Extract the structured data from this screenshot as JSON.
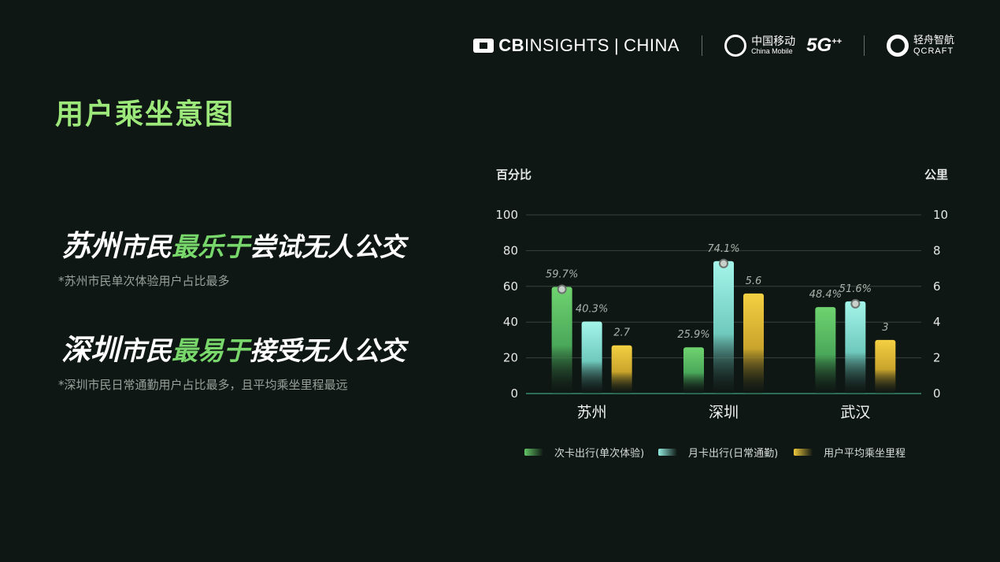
{
  "logos": {
    "cb_brand": "CB",
    "cb_insights": "INSIGHTS",
    "cb_sep": "|",
    "cb_china": "CHINA",
    "chinamobile_cn": "中国移动",
    "chinamobile_en": "China Mobile",
    "g5": "5G",
    "g5_plus": "++",
    "qcraft_cn": "轻舟智航",
    "qcraft_en": "QCRAFT"
  },
  "page_title": "用户乘坐意图",
  "findings": [
    {
      "city": "苏州",
      "mid": "市民",
      "highlight": "最乐于",
      "rest": "尝试无人公交",
      "note": "*苏州市民单次体验用户占比最多"
    },
    {
      "city": "深圳",
      "mid": "市民",
      "highlight": "最易于",
      "rest": "接受无人公交",
      "note": "*深圳市民日常通勤用户占比最多，且平均乘坐里程最远"
    }
  ],
  "colors": {
    "bg": "#0f1714",
    "green": "#62c466",
    "cyan": "#93ece0",
    "yellow": "#eec73b",
    "title": "#9de87b"
  },
  "chart_data": {
    "type": "bar",
    "categories": [
      "苏州",
      "深圳",
      "武汉"
    ],
    "y_left_label": "百分比",
    "y_right_label": "公里",
    "ylim_left": [
      0,
      100
    ],
    "ylim_right": [
      0,
      10
    ],
    "y_left_ticks": [
      "100",
      "80",
      "60",
      "40",
      "20",
      "0"
    ],
    "y_right_ticks": [
      "10",
      "8",
      "6",
      "4",
      "2",
      "0"
    ],
    "grid": true,
    "legend_position": "bottom",
    "series": [
      {
        "name": "次卡出行(单次体验)",
        "axis": "left",
        "values": [
          59.7,
          25.9,
          48.4
        ],
        "labels": [
          "59.7%",
          "25.9%",
          "48.4%"
        ],
        "color": "#62c466"
      },
      {
        "name": "月卡出行(日常通勤)",
        "axis": "left",
        "values": [
          40.3,
          74.1,
          51.6
        ],
        "labels": [
          "40.3%",
          "74.1%",
          "51.6%"
        ],
        "color": "#93ece0"
      },
      {
        "name": "用户平均乘坐里程",
        "axis": "right",
        "values": [
          2.7,
          5.6,
          3
        ],
        "labels": [
          "2.7",
          "5.6",
          "3"
        ],
        "color": "#eec73b"
      }
    ]
  }
}
